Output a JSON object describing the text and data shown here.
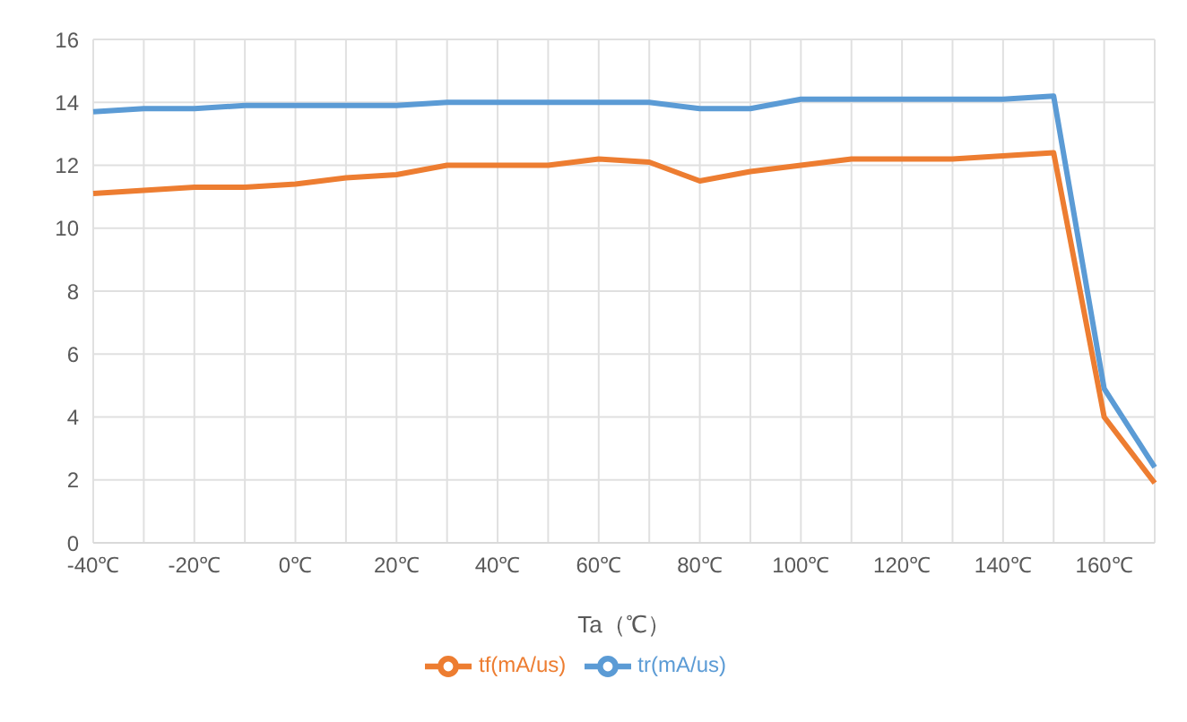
{
  "chart_data": {
    "type": "line",
    "xlabel": "Ta（℃）",
    "categories": [
      "-40℃",
      null,
      "-20℃",
      null,
      "0℃",
      null,
      "20℃",
      null,
      "40℃",
      null,
      "60℃",
      null,
      "80℃",
      null,
      "100℃",
      null,
      "120℃",
      null,
      "140℃",
      null,
      "160℃",
      null
    ],
    "series": [
      {
        "name": "tr(mA/us)",
        "color": "#5b9bd5",
        "values": [
          13.7,
          13.8,
          13.8,
          13.9,
          13.9,
          13.9,
          13.9,
          14.0,
          14.0,
          14.0,
          14.0,
          14.0,
          13.8,
          13.8,
          14.1,
          14.1,
          14.1,
          14.1,
          14.1,
          14.2,
          4.9,
          2.4
        ]
      },
      {
        "name": "tf(mA/us)",
        "color": "#ed7d31",
        "values": [
          11.1,
          11.2,
          11.3,
          11.3,
          11.4,
          11.6,
          11.7,
          12.0,
          12.0,
          12.0,
          12.2,
          12.1,
          11.5,
          11.8,
          12.0,
          12.2,
          12.2,
          12.2,
          12.3,
          12.4,
          4.0,
          1.9
        ]
      }
    ],
    "ylim": [
      0,
      16
    ],
    "yticks": [
      0,
      2,
      4,
      6,
      8,
      10,
      12,
      14,
      16
    ],
    "grid": true,
    "legend": "bottom",
    "marker": "none",
    "line_style": "solid"
  }
}
